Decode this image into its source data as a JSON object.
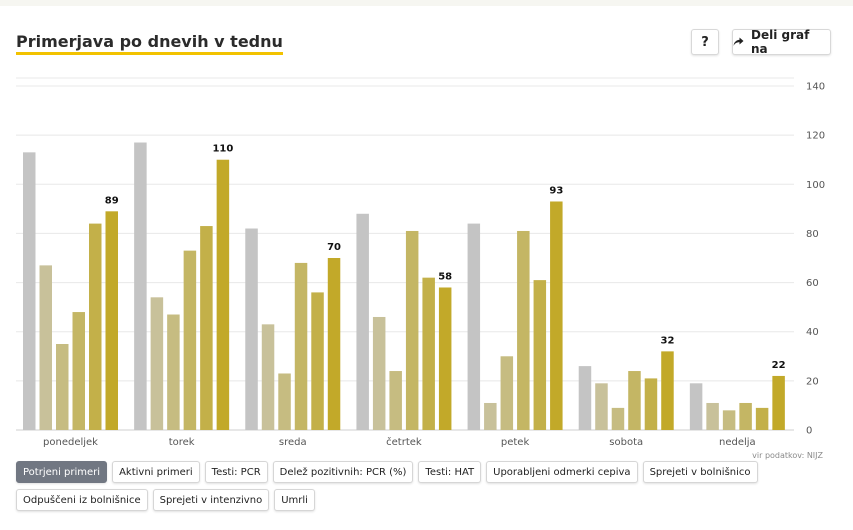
{
  "header": {
    "title": "Primerjava po dnevih v tednu",
    "help_label": "?",
    "share_label": "Deli graf na"
  },
  "source_text": "vir podatkov: NIJZ",
  "tabs": [
    {
      "label": "Potrjeni primeri",
      "active": true
    },
    {
      "label": "Aktivni primeri",
      "active": false
    },
    {
      "label": "Testi: PCR",
      "active": false
    },
    {
      "label": "Delež pozitivnih: PCR (%)",
      "active": false
    },
    {
      "label": "Testi: HAT",
      "active": false
    },
    {
      "label": "Uporabljeni odmerki cepiva",
      "active": false
    },
    {
      "label": "Sprejeti v bolnišnico",
      "active": false
    },
    {
      "label": "Odpuščeni iz bolnišnice",
      "active": false
    },
    {
      "label": "Sprejeti v intenzivno",
      "active": false
    },
    {
      "label": "Umrli",
      "active": false
    }
  ],
  "colors": {
    "series": [
      "#c4c4c4",
      "#c8c19a",
      "#c6bc81",
      "#c4b664",
      "#c3b049",
      "#c2a929"
    ],
    "grid": "#e8e8e8",
    "axis_text": "#555555",
    "value_label": "#111111"
  },
  "chart_data": {
    "type": "bar",
    "title": "Primerjava po dnevih v tednu",
    "categories": [
      "ponedeljek",
      "torek",
      "sreda",
      "četrtek",
      "petek",
      "sobota",
      "nedelja"
    ],
    "series": [
      {
        "values": [
          113,
          117,
          82,
          88,
          84,
          26,
          19
        ]
      },
      {
        "values": [
          67,
          54,
          43,
          46,
          11,
          19,
          11
        ]
      },
      {
        "values": [
          35,
          47,
          23,
          24,
          30,
          9,
          8
        ]
      },
      {
        "values": [
          48,
          73,
          68,
          81,
          81,
          24,
          11
        ]
      },
      {
        "values": [
          84,
          83,
          56,
          62,
          61,
          21,
          9
        ]
      },
      {
        "values": [
          89,
          110,
          70,
          58,
          93,
          32,
          22
        ]
      }
    ],
    "labeled_series_index": 5,
    "yticks": [
      0,
      20,
      40,
      60,
      80,
      100,
      120,
      140
    ],
    "ylim": [
      0,
      140
    ],
    "y_axis_position": "right",
    "grid": true
  }
}
